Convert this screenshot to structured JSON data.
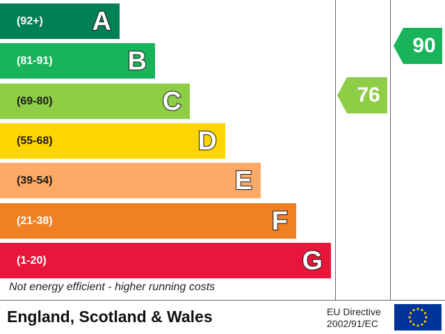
{
  "chart_data": {
    "type": "bar",
    "bands": [
      {
        "range": "(92+)",
        "letter": "A",
        "color": "#008054",
        "min": 92,
        "max": 100
      },
      {
        "range": "(81-91)",
        "letter": "B",
        "color": "#19b459",
        "min": 81,
        "max": 91
      },
      {
        "range": "(69-80)",
        "letter": "C",
        "color": "#8dce46",
        "min": 69,
        "max": 80
      },
      {
        "range": "(55-68)",
        "letter": "D",
        "color": "#ffd500",
        "min": 55,
        "max": 68
      },
      {
        "range": "(39-54)",
        "letter": "E",
        "color": "#fcaa65",
        "min": 39,
        "max": 54
      },
      {
        "range": "(21-38)",
        "letter": "F",
        "color": "#ef8023",
        "min": 21,
        "max": 38
      },
      {
        "range": "(1-20)",
        "letter": "G",
        "color": "#e9153b",
        "min": 1,
        "max": 20
      }
    ],
    "current": {
      "value": 76,
      "band": "C",
      "color": "#8dce46"
    },
    "potential": {
      "value": 90,
      "band": "B",
      "color": "#19b459"
    }
  },
  "footer": {
    "note": "Not energy efficient - higher running costs",
    "region": "England, Scotland & Wales",
    "directive_line1": "EU Directive",
    "directive_line2": "2002/91/EC"
  }
}
